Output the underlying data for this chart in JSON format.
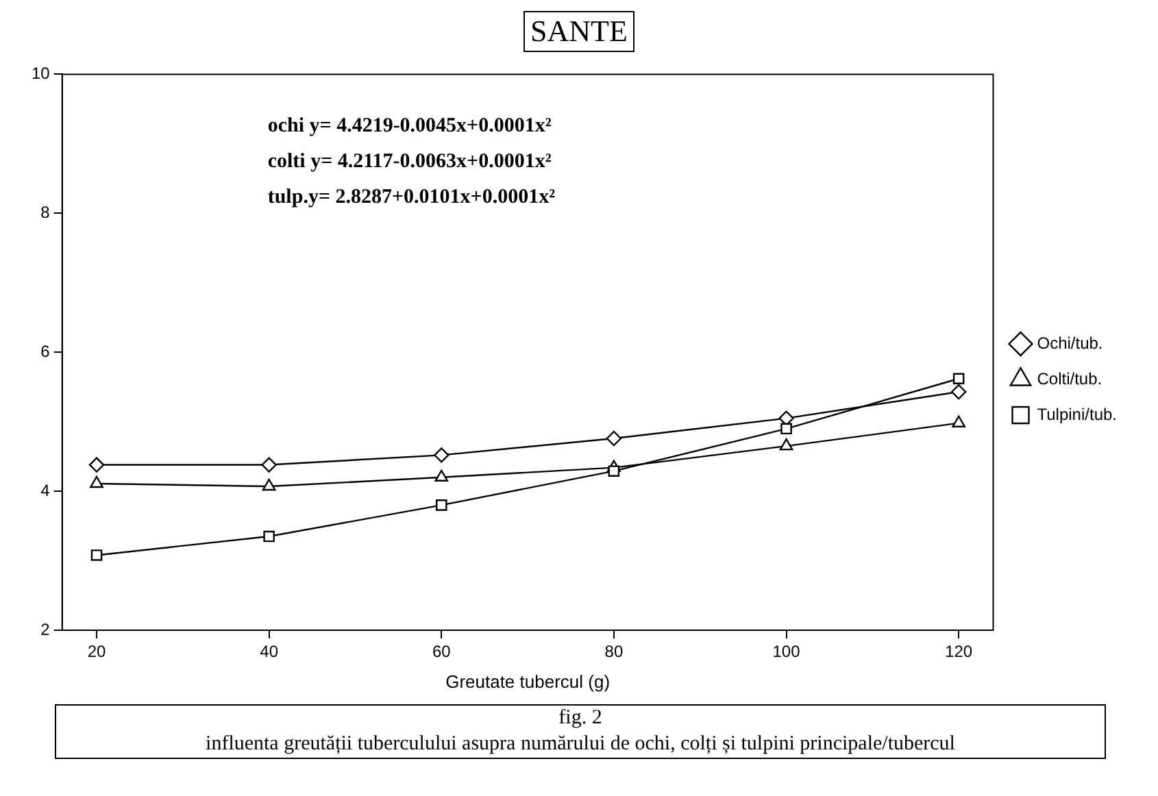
{
  "chart_data": {
    "type": "line",
    "title": "SANTE",
    "xlabel": "Greutate tubercul (g)",
    "x": [
      20,
      40,
      60,
      80,
      100,
      120
    ],
    "series": [
      {
        "name": "Ochi/tub.",
        "color": "#000000",
        "marker": "diamond",
        "values": [
          4.38,
          4.38,
          4.52,
          4.76,
          5.05,
          5.43
        ]
      },
      {
        "name": "Colti/tub.",
        "color": "#000000",
        "marker": "triangle",
        "values": [
          4.11,
          4.07,
          4.2,
          4.34,
          4.65,
          4.98
        ]
      },
      {
        "name": "Tulpini/tub.",
        "color": "#000000",
        "marker": "square",
        "values": [
          3.08,
          3.35,
          3.8,
          4.29,
          4.9,
          5.62
        ]
      }
    ],
    "xlim": [
      16,
      124
    ],
    "xticks": [
      20,
      40,
      60,
      80,
      100,
      120
    ],
    "ylim": [
      2,
      10
    ],
    "yticks": [
      2,
      4,
      6,
      8,
      10
    ],
    "grid": false,
    "legend": "right",
    "line_style": "solid",
    "annotations": [
      "ochi y= 4.4219-0.0045x+0.0001x²",
      "colti y= 4.2117-0.0063x+0.0001x²",
      "tulp.y= 2.8287+0.0101x+0.0001x²",
      "fig. 2",
      "influenta greutății tuberculului asupra numărului de ochi, colți și tulpini principale/tubercul"
    ]
  }
}
